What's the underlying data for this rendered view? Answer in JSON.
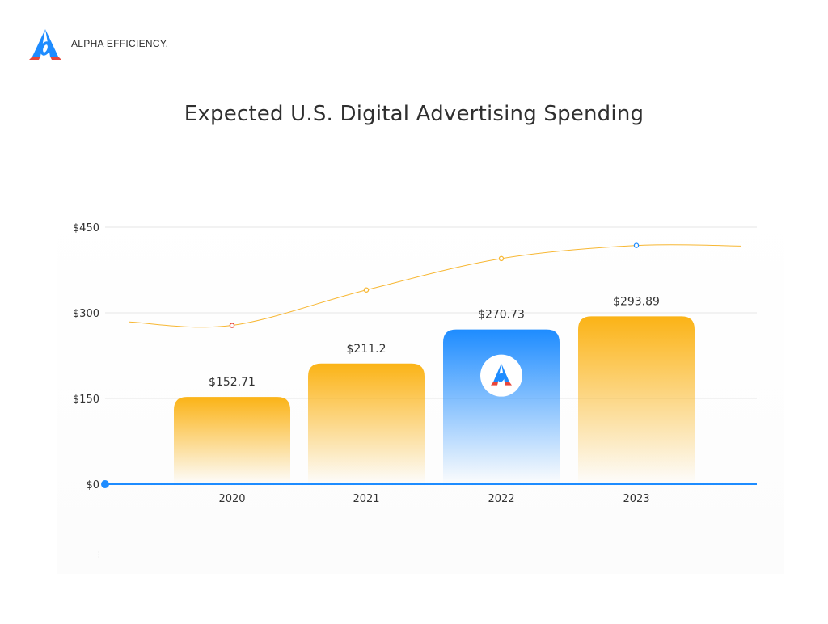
{
  "brand": {
    "name": "ALPHA EFFICIENCY.",
    "colors": {
      "blue": "#1e8cff",
      "red": "#e8463a",
      "orange": "#f7a531"
    }
  },
  "chart_data": {
    "type": "bar",
    "title": "Expected U.S. Digital Advertising Spending",
    "categories": [
      "2020",
      "2021",
      "2022",
      "2023"
    ],
    "values": [
      152.71,
      211.2,
      270.73,
      293.89
    ],
    "value_labels": [
      "$152.71",
      "$211.2",
      "$270.73",
      "$293.89"
    ],
    "highlight_index": 2,
    "ylim": [
      0,
      450
    ],
    "yticks": [
      0,
      150,
      300,
      450
    ],
    "ytick_labels": [
      "$0",
      "$150",
      "$300",
      "$450"
    ],
    "grid": true,
    "trend_line": {
      "color": "#f7b733",
      "points": [
        278,
        340,
        395,
        418
      ],
      "marker_colors": [
        "#e8463a",
        "#f7b733",
        "#f7b733",
        "#1e8cff"
      ]
    },
    "colors": {
      "bar_top": "#fbb316",
      "highlight_top": "#1e8cff",
      "axis": "#1e8cff",
      "grid": "#e6e6e6"
    }
  }
}
